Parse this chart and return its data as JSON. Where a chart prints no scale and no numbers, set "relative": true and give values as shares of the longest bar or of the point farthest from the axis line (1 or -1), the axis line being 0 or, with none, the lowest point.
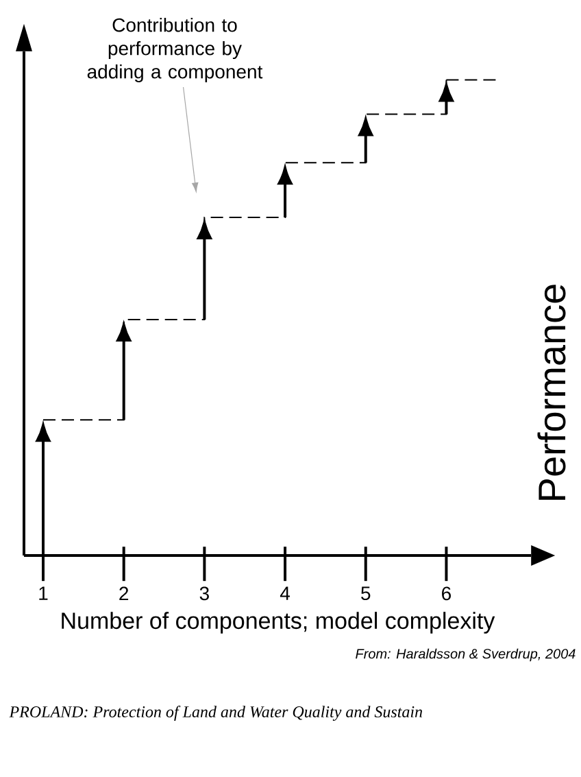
{
  "chart_data": {
    "type": "step",
    "relative": true,
    "categories": [
      "1",
      "2",
      "3",
      "4",
      "5",
      "6"
    ],
    "values": [
      0.285,
      0.496,
      0.711,
      0.826,
      0.928,
      1.0
    ],
    "color": "#000000",
    "line_style": "dashed",
    "xlabel": "Number of components; model complexity",
    "ylabel": "Performance",
    "annotations": [
      "Contribution to performance by adding a component",
      "From: Haraldsson & Sverdrup, 2004",
      "PROLAND: Protection of Land and Water Quality and Sustain"
    ]
  }
}
